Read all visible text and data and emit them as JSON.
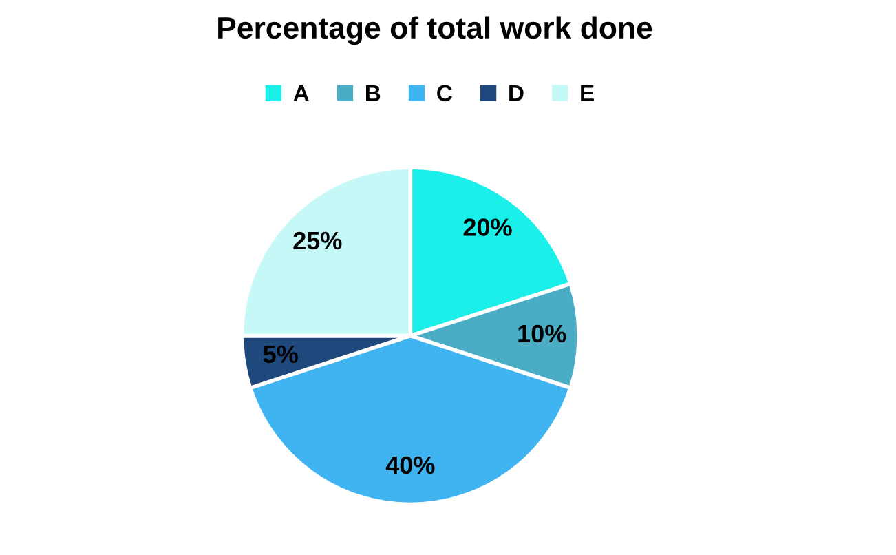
{
  "chart_data": {
    "type": "pie",
    "title": "Percentage of total work done",
    "categories": [
      "A",
      "B",
      "C",
      "D",
      "E"
    ],
    "values": [
      20,
      10,
      40,
      5,
      25
    ],
    "colors": [
      "#1aefe9",
      "#4bacc6",
      "#3fb4f0",
      "#1f497d",
      "#c6f8f8"
    ],
    "value_labels": [
      "20%",
      "10%",
      "40%",
      "5%",
      "25%"
    ],
    "legend": "top"
  }
}
